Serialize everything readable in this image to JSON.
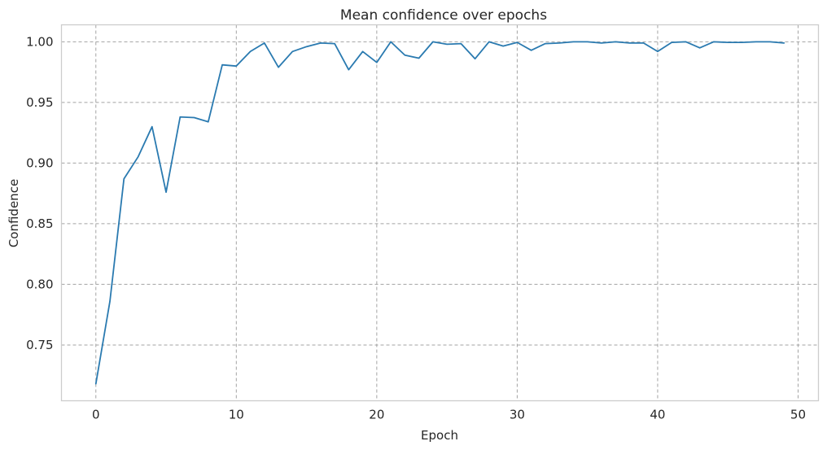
{
  "chart_data": {
    "type": "line",
    "title": "Mean confidence over epochs",
    "xlabel": "Epoch",
    "ylabel": "Confidence",
    "xlim": [
      -2.45,
      51.45
    ],
    "ylim": [
      0.704,
      1.014
    ],
    "xticks": [
      0,
      10,
      20,
      30,
      40,
      50
    ],
    "yticks": [
      0.75,
      0.8,
      0.85,
      0.9,
      0.95,
      1.0
    ],
    "ytick_labels": [
      "0.75",
      "0.80",
      "0.85",
      "0.90",
      "0.95",
      "1.00"
    ],
    "grid": true,
    "line_color": "#2a7ab0",
    "grid_color": "#a3a3a3",
    "series": [
      {
        "x": [
          0,
          1,
          2,
          3,
          4,
          5,
          6,
          7,
          8,
          9,
          10,
          11,
          12,
          13,
          14,
          15,
          16,
          17,
          18,
          19,
          20,
          21,
          22,
          23,
          24,
          25,
          26,
          27,
          28,
          29,
          30,
          31,
          32,
          33,
          34,
          35,
          36,
          37,
          38,
          39,
          40,
          41,
          42,
          43,
          44,
          45,
          46,
          47,
          48,
          49
        ],
        "values": [
          0.718,
          0.786,
          0.887,
          0.905,
          0.93,
          0.876,
          0.938,
          0.9375,
          0.934,
          0.981,
          0.98,
          0.992,
          0.999,
          0.979,
          0.992,
          0.996,
          0.999,
          0.9985,
          0.977,
          0.992,
          0.983,
          1.0,
          0.989,
          0.9865,
          1.0,
          0.998,
          0.9985,
          0.986,
          1.0,
          0.9965,
          0.9995,
          0.993,
          0.9985,
          0.999,
          1.0,
          1.0,
          0.999,
          1.0,
          0.999,
          0.999,
          0.992,
          0.9995,
          1.0,
          0.995,
          1.0,
          0.9995,
          0.9995,
          1.0,
          1.0,
          0.999
        ]
      }
    ]
  }
}
